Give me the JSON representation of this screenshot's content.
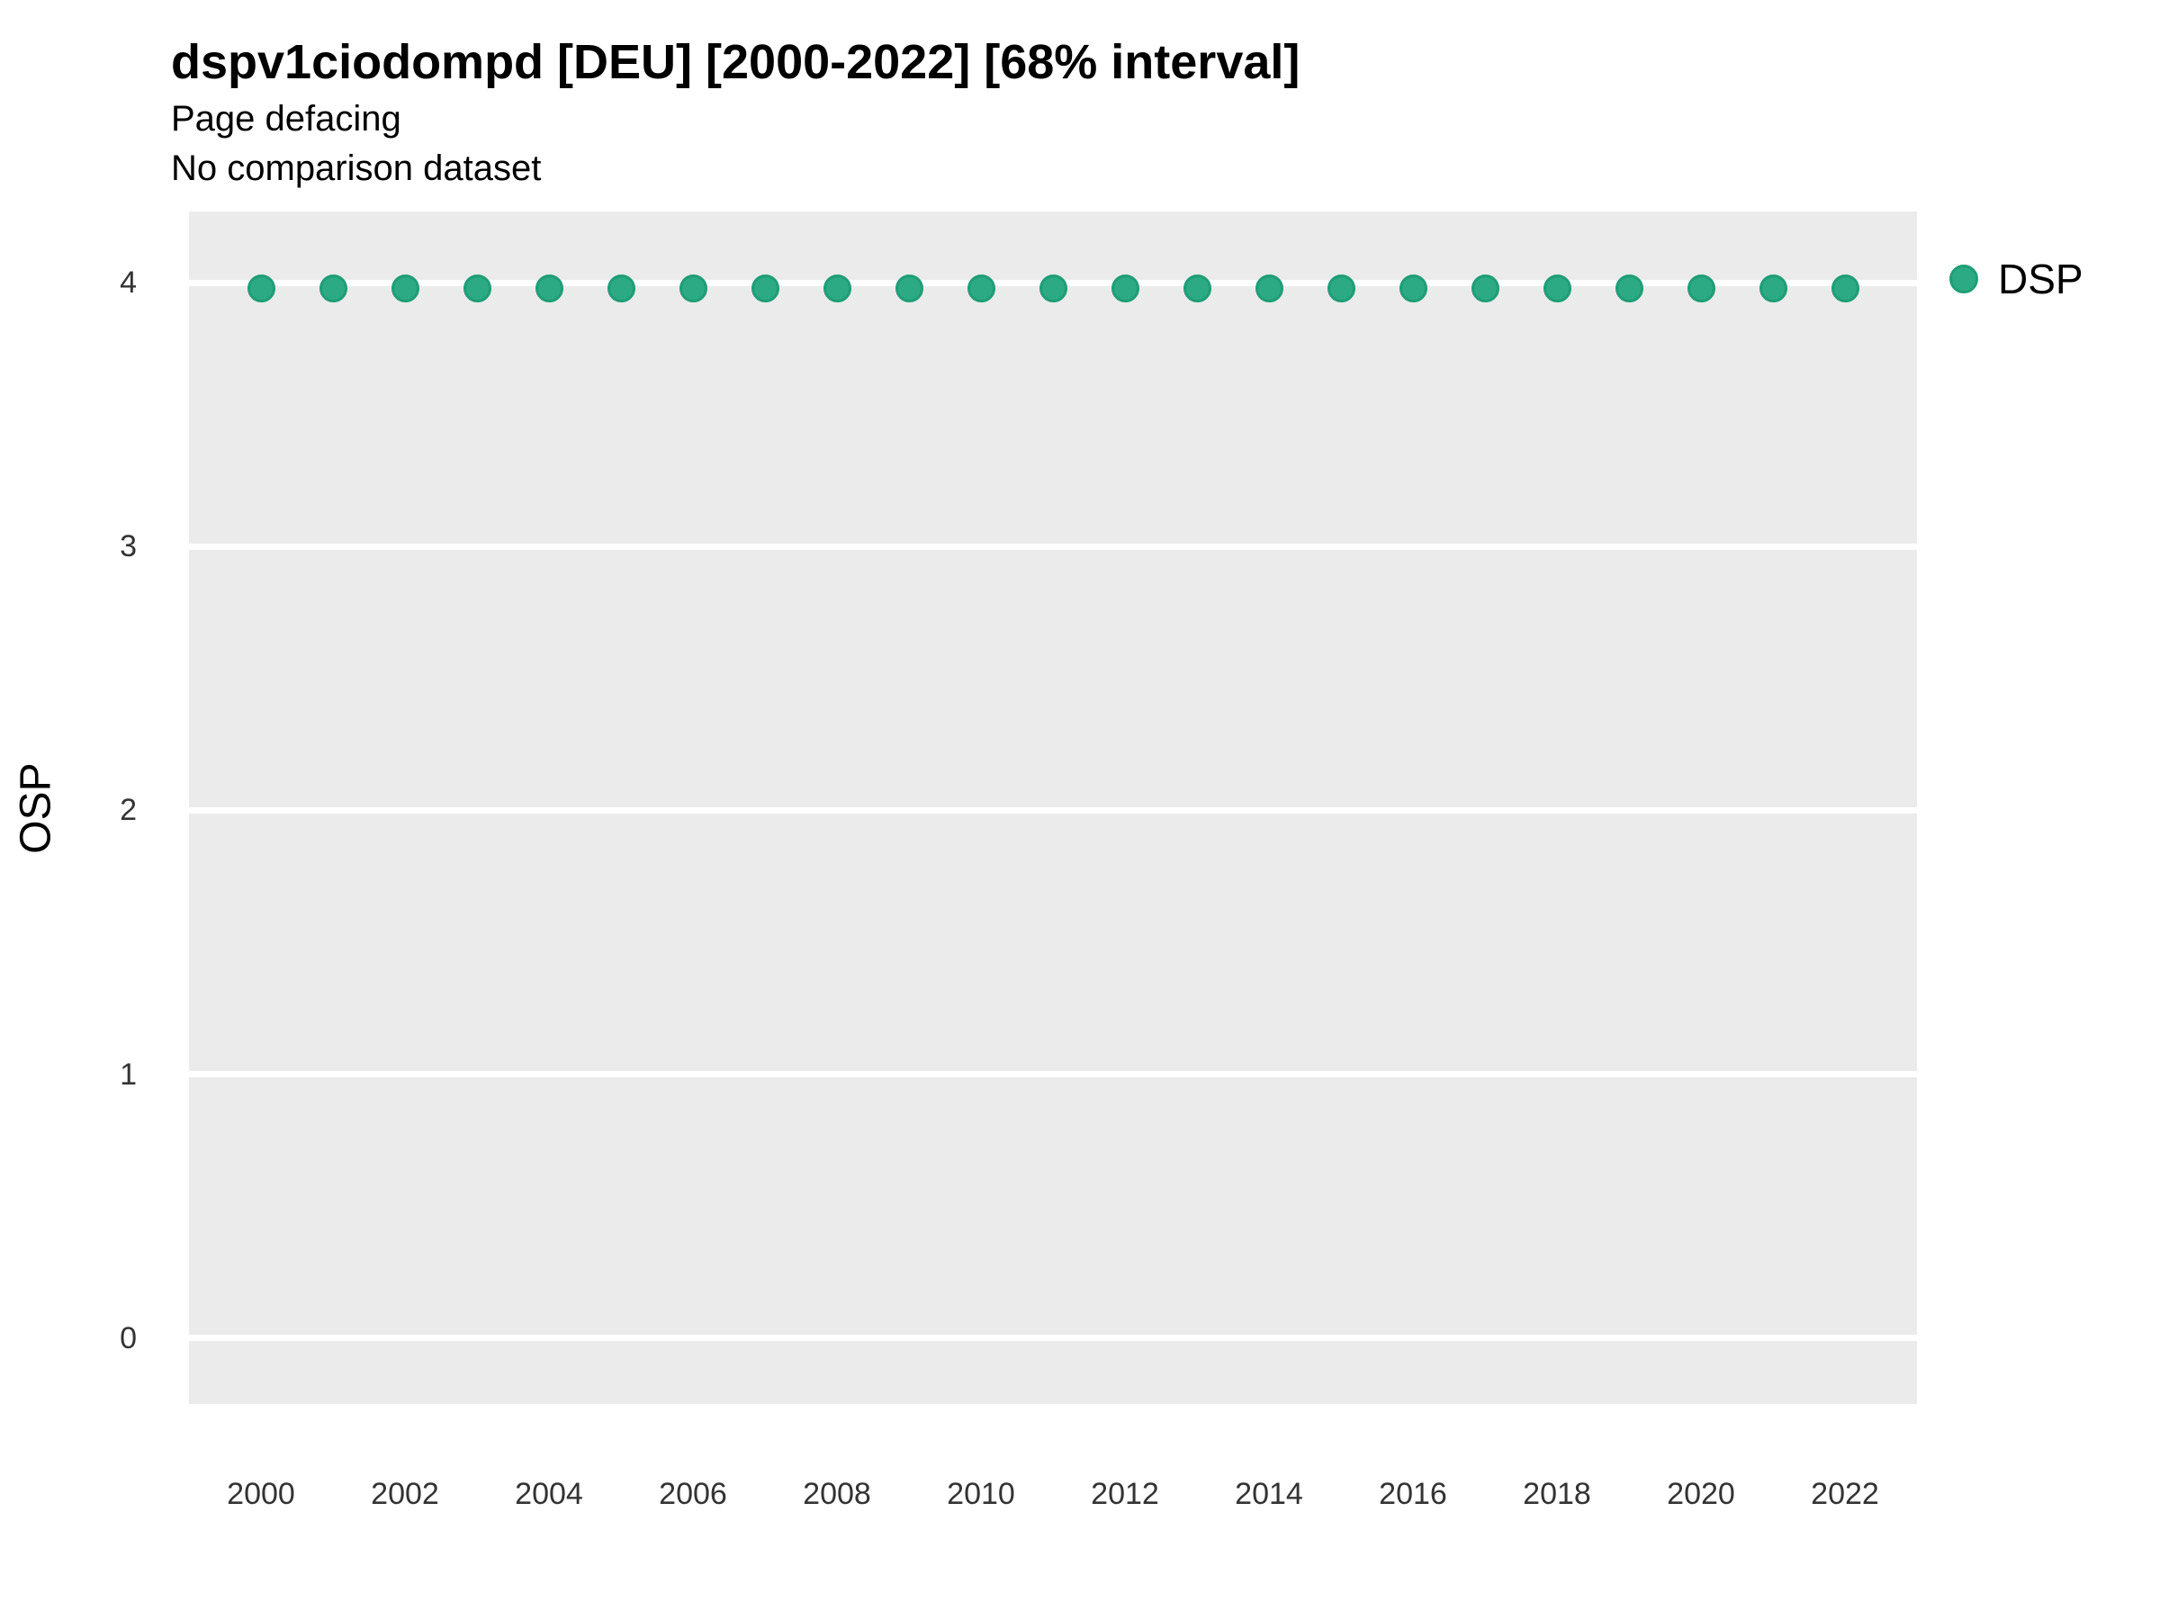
{
  "header": {
    "title": "dspv1ciodompd [DEU] [2000-2022] [68% interval]",
    "subtitle1": "Page defacing",
    "subtitle2": "No comparison dataset"
  },
  "legend": {
    "label": "DSP"
  },
  "colors": {
    "point_fill": "#2BAA84",
    "point_border": "#1E9E76",
    "panel_bg": "#EBEBEB",
    "gridline": "#FFFFFF",
    "tick_text": "#333333"
  },
  "chart_data": {
    "type": "scatter",
    "title": "dspv1ciodompd [DEU] [2000-2022] [68% interval]",
    "subtitle": "Page defacing",
    "note": "No comparison dataset",
    "xlabel": "",
    "ylabel": "OSP",
    "legend_position": "right",
    "grid": "major-horizontal",
    "x_domain": [
      1999,
      2023
    ],
    "y_domain": [
      -0.25,
      4.27
    ],
    "y_ticks": [
      0,
      1,
      2,
      3,
      4
    ],
    "x_ticks": [
      2000,
      2002,
      2004,
      2006,
      2008,
      2010,
      2012,
      2014,
      2016,
      2018,
      2020,
      2022
    ],
    "series": [
      {
        "name": "DSP",
        "x": [
          2000,
          2001,
          2002,
          2003,
          2004,
          2005,
          2006,
          2007,
          2008,
          2009,
          2010,
          2011,
          2012,
          2013,
          2014,
          2015,
          2016,
          2017,
          2018,
          2019,
          2020,
          2021,
          2022
        ],
        "y": [
          3.98,
          3.98,
          3.98,
          3.98,
          3.98,
          3.98,
          3.98,
          3.98,
          3.98,
          3.98,
          3.98,
          3.98,
          3.98,
          3.98,
          3.98,
          3.98,
          3.98,
          3.98,
          3.98,
          3.98,
          3.98,
          3.98,
          3.98
        ]
      }
    ]
  }
}
